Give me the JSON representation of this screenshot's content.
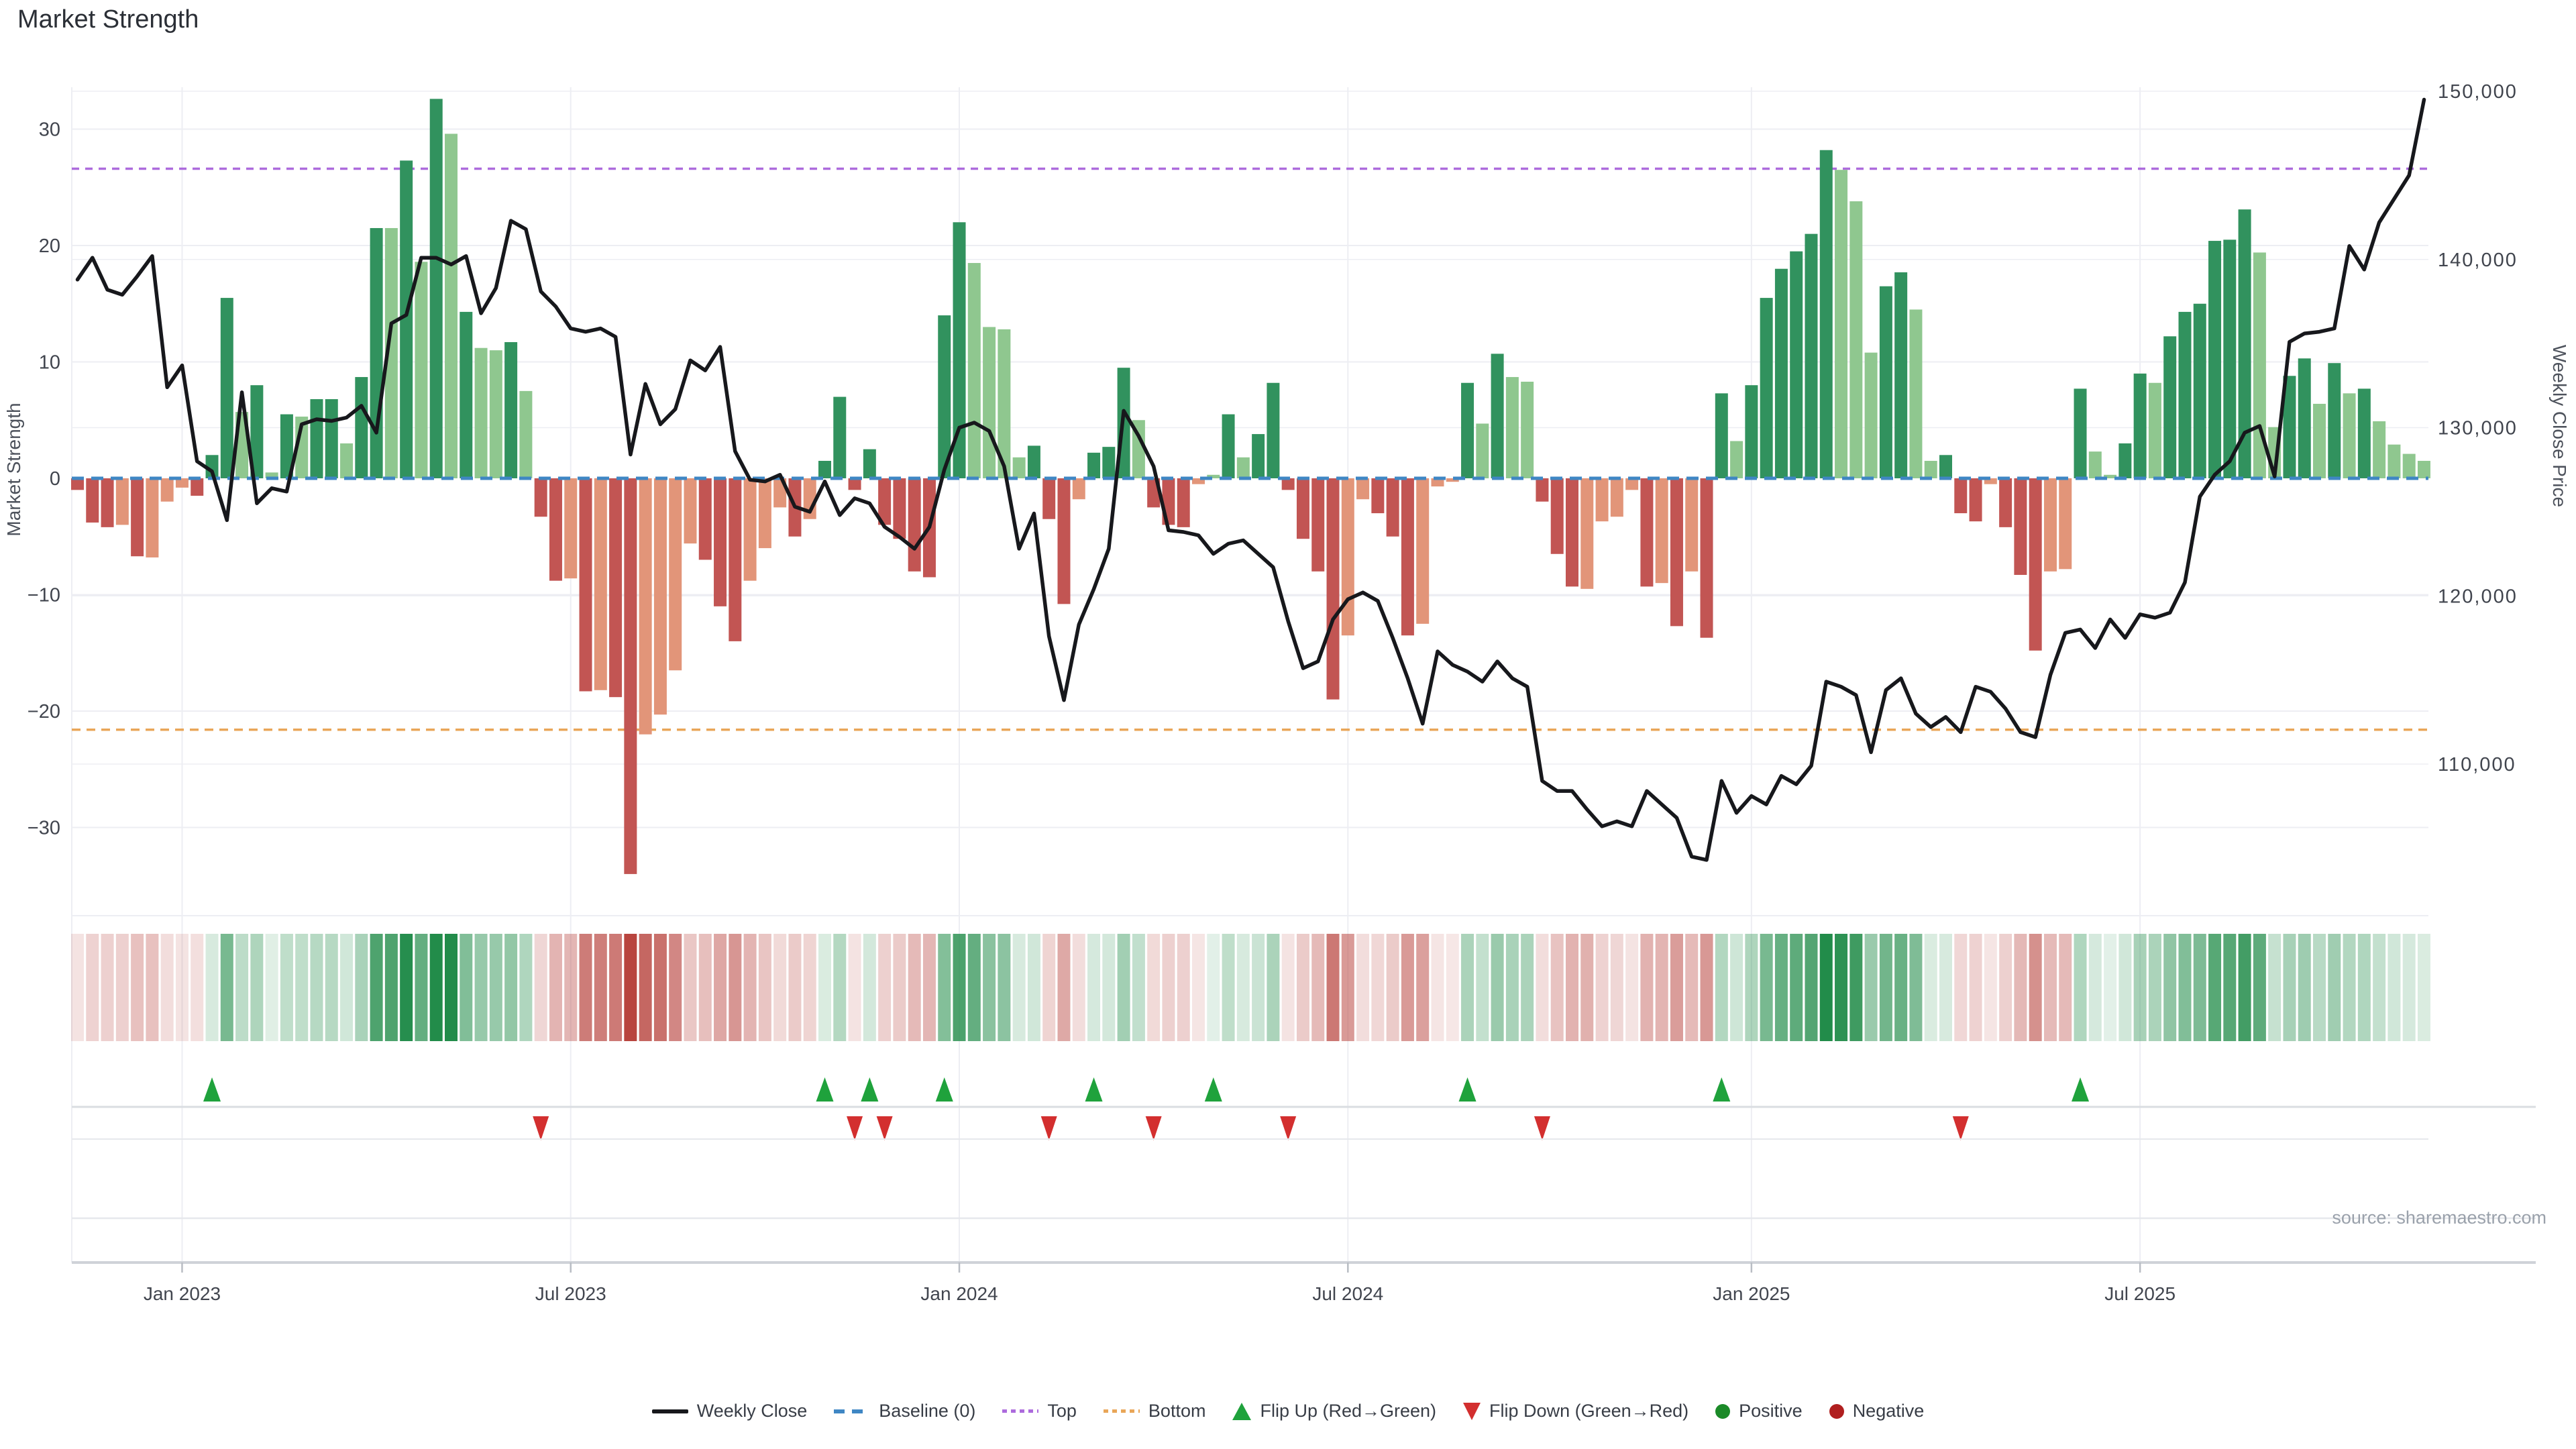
{
  "title": "Market Strength",
  "source_label": "source: sharemaestro.com",
  "axes": {
    "left_title": "Market Strength",
    "right_title": "Weekly Close Price",
    "left_ticks": [
      30,
      20,
      10,
      0,
      -10,
      -20,
      -30
    ],
    "right_ticks": [
      150000,
      140000,
      130000,
      120000,
      110000
    ],
    "right_tick_labels": [
      "150,000",
      "140,000",
      "130,000",
      "120,000",
      "110,000"
    ],
    "x_tick_labels": [
      "Jan 2023",
      "Jul 2023",
      "Jan 2024",
      "Jul 2024",
      "Jan 2025",
      "Jul 2025"
    ]
  },
  "legend": [
    {
      "label": "Weekly Close",
      "swatch": "line"
    },
    {
      "label": "Baseline (0)",
      "swatch": "dash-blue"
    },
    {
      "label": "Top",
      "swatch": "dot-purple"
    },
    {
      "label": "Bottom",
      "swatch": "dot-orange"
    },
    {
      "label": "Flip Up (Red→Green)",
      "swatch": "tri-up"
    },
    {
      "label": "Flip Down (Green→Red)",
      "swatch": "tri-down"
    },
    {
      "label": "Positive",
      "swatch": "circle-green"
    },
    {
      "label": "Negative",
      "swatch": "circle-red"
    }
  ],
  "colors": {
    "bar_pos_strong": "#31925e",
    "bar_pos_soft": "#8fc78f",
    "bar_neg_strong": "#c25553",
    "bar_neg_soft": "#e29579",
    "baseline": "#3f87c4",
    "top_line": "#ad6bdd",
    "bottom_line": "#e9a658",
    "price_line": "#17181c",
    "flip_up": "#1fa23c",
    "flip_down": "#d32f2f",
    "heat_pos_rgb": "34,140,74",
    "heat_neg_rgb": "184,68,62",
    "positive_dot": "#1b8a28",
    "negative_dot": "#b01f1f",
    "grid": "#edeef3",
    "axis_text": "#41454e",
    "axis_title": "#4d525c"
  },
  "chart_data": {
    "type": "bar",
    "series_info": "weekly market strength bars (left axis) + weekly close price line (right axis); heat strip and flip markers derived from strength sign",
    "x_unit": "week",
    "x_tick_weeks": [
      7,
      33,
      59,
      85,
      112,
      138
    ],
    "x_tick_labels": [
      "Jan 2023",
      "Jul 2023",
      "Jan 2024",
      "Jul 2024",
      "Jan 2025",
      "Jul 2025"
    ],
    "strength_axis": {
      "label": "Market Strength",
      "ticks": [
        30,
        20,
        10,
        0,
        -10,
        -20,
        -30
      ],
      "range": [
        -36,
        33.6
      ]
    },
    "price_axis": {
      "label": "Weekly Close Price",
      "ticks": [
        150000,
        140000,
        130000,
        120000,
        110000
      ],
      "range": [
        103000,
        150500
      ]
    },
    "reference_lines": {
      "baseline": 0,
      "top": 26.6,
      "bottom": -21.6
    },
    "strength": [
      -1.0,
      -3.8,
      -4.2,
      -4.0,
      -6.7,
      -6.8,
      -2.0,
      -0.8,
      -1.5,
      2.0,
      15.5,
      5.7,
      8.0,
      0.5,
      5.5,
      5.3,
      6.8,
      6.8,
      3.0,
      8.7,
      21.5,
      21.5,
      27.3,
      18.6,
      32.6,
      29.6,
      14.3,
      11.2,
      11.0,
      11.7,
      7.5,
      -3.3,
      -8.8,
      -8.6,
      -18.3,
      -18.2,
      -18.8,
      -34.0,
      -22.0,
      -20.3,
      -16.5,
      -5.6,
      -7.0,
      -11.0,
      -14.0,
      -8.8,
      -6.0,
      -2.5,
      -5.0,
      -3.5,
      1.5,
      7.0,
      -1.0,
      2.5,
      -4.0,
      -5.2,
      -8.0,
      -8.5,
      14.0,
      22.0,
      18.5,
      13.0,
      12.8,
      1.8,
      2.8,
      -3.5,
      -10.8,
      -1.8,
      2.2,
      2.7,
      9.5,
      5.0,
      -2.5,
      -4.0,
      -4.2,
      -0.5,
      0.3,
      5.5,
      1.8,
      3.8,
      8.2,
      -1.0,
      -5.2,
      -8.0,
      -19.0,
      -13.5,
      -1.8,
      -3.0,
      -5.0,
      -13.5,
      -12.5,
      -0.7,
      -0.3,
      8.2,
      4.7,
      10.7,
      8.7,
      8.3,
      -2.0,
      -6.5,
      -9.3,
      -9.5,
      -3.7,
      -3.3,
      -1.0,
      -9.3,
      -9.0,
      -12.7,
      -8.0,
      -13.7,
      7.3,
      3.2,
      8.0,
      15.5,
      18.0,
      19.5,
      21.0,
      28.2,
      26.5,
      23.8,
      10.8,
      16.5,
      17.7,
      14.5,
      1.5,
      2.0,
      -3.0,
      -3.7,
      -0.5,
      -4.2,
      -8.3,
      -14.8,
      -8.0,
      -7.8,
      7.7,
      2.3,
      0.3,
      3.0,
      9.0,
      8.2,
      12.2,
      14.3,
      15.0,
      20.4,
      20.5,
      23.1,
      19.4,
      4.4,
      8.8,
      10.3,
      6.4,
      9.9,
      7.3,
      7.7,
      4.9,
      2.9,
      2.1,
      1.5
    ],
    "strong_shade": [
      1,
      1,
      1,
      0,
      1,
      0,
      0,
      0,
      1,
      1,
      1,
      0,
      1,
      0,
      1,
      0,
      1,
      1,
      0,
      1,
      1,
      0,
      1,
      0,
      1,
      0,
      1,
      0,
      0,
      1,
      0,
      1,
      1,
      0,
      1,
      0,
      1,
      1,
      0,
      0,
      0,
      0,
      1,
      1,
      1,
      0,
      0,
      0,
      1,
      0,
      1,
      1,
      1,
      1,
      1,
      1,
      1,
      1,
      1,
      1,
      0,
      0,
      0,
      0,
      1,
      1,
      1,
      0,
      1,
      1,
      1,
      0,
      1,
      1,
      1,
      0,
      0,
      1,
      0,
      1,
      1,
      1,
      1,
      1,
      1,
      0,
      0,
      1,
      1,
      1,
      0,
      0,
      0,
      1,
      0,
      1,
      0,
      0,
      1,
      1,
      1,
      0,
      0,
      0,
      0,
      1,
      0,
      1,
      0,
      1,
      1,
      0,
      1,
      1,
      1,
      1,
      1,
      1,
      0,
      0,
      0,
      1,
      1,
      0,
      0,
      1,
      1,
      1,
      0,
      1,
      1,
      1,
      0,
      0,
      1,
      0,
      0,
      1,
      1,
      0,
      1,
      1,
      1,
      1,
      1,
      1,
      0,
      0,
      1,
      1,
      0,
      1,
      0,
      1,
      0,
      0,
      0,
      0
    ],
    "price": [
      138800,
      140100,
      138200,
      137900,
      139000,
      140200,
      132400,
      133700,
      128000,
      127400,
      124500,
      132100,
      125500,
      126400,
      126200,
      130200,
      130500,
      130400,
      130600,
      131300,
      129700,
      136200,
      136700,
      140100,
      140100,
      139700,
      140200,
      136800,
      138300,
      142300,
      141800,
      138100,
      137200,
      135900,
      135700,
      135900,
      135400,
      128400,
      132600,
      130200,
      131100,
      134000,
      133400,
      134800,
      128600,
      126900,
      126800,
      127200,
      125300,
      125000,
      126800,
      124800,
      125800,
      125500,
      124100,
      123500,
      122800,
      124100,
      127500,
      130000,
      130300,
      129800,
      127700,
      122800,
      124900,
      117600,
      113800,
      118300,
      120400,
      122800,
      131000,
      129500,
      127700,
      123900,
      123800,
      123600,
      122500,
      123100,
      123300,
      122500,
      121700,
      118500,
      115700,
      116100,
      118600,
      119800,
      120200,
      119700,
      117500,
      115100,
      112400,
      116700,
      115900,
      115500,
      114900,
      116100,
      115100,
      114600,
      109000,
      108400,
      108400,
      107300,
      106300,
      106600,
      106300,
      108400,
      107600,
      106800,
      104500,
      104300,
      109000,
      107100,
      108100,
      107600,
      109300,
      108800,
      109900,
      114900,
      114600,
      114100,
      110700,
      114400,
      115100,
      113000,
      112200,
      112800,
      111900,
      114600,
      114300,
      113300,
      111900,
      111600,
      115300,
      117800,
      118000,
      116900,
      118600,
      117500,
      118900,
      118700,
      119000,
      120800,
      125900,
      127200,
      128000,
      129700,
      130100,
      127100,
      135100,
      135600,
      135700,
      135900,
      140800,
      139400,
      142200,
      143600,
      145000,
      149500
    ],
    "flip_rule": "marker when strength sign flips vs previous week",
    "legend_position": "bottom-center",
    "grid": "on"
  }
}
